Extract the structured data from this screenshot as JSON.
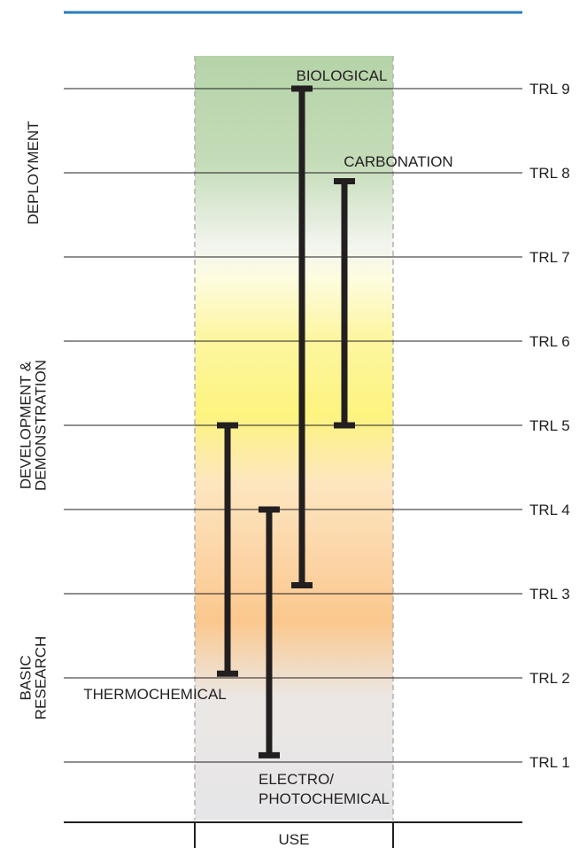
{
  "chart_data": {
    "type": "range",
    "y_axis": {
      "levels": [
        "TRL 1",
        "TRL 2",
        "TRL 3",
        "TRL 4",
        "TRL 5",
        "TRL 6",
        "TRL 7",
        "TRL 8",
        "TRL 9"
      ],
      "range": [
        1,
        9
      ]
    },
    "phases": [
      {
        "label": "DEPLOYMENT",
        "from": 7,
        "to": 9
      },
      {
        "label_lines": [
          "DEVELOPMENT &",
          "DEMONSTRATION"
        ],
        "from": 4,
        "to": 6
      },
      {
        "label_lines": [
          "BASIC",
          "RESEARCH"
        ],
        "from": 1,
        "to": 3
      }
    ],
    "column_label": "USE",
    "series": [
      {
        "label_lines": [
          "BIOLOGICAL"
        ],
        "low": 3.1,
        "high": 9.0
      },
      {
        "label_lines": [
          "CARBONATION"
        ],
        "low": 5.0,
        "high": 7.9
      },
      {
        "label_lines": [
          "THERMOCHEMICAL"
        ],
        "low": 2.05,
        "high": 5.0
      },
      {
        "label_lines": [
          "ELECTRO/",
          "PHOTOCHEMICAL"
        ],
        "low": 1.08,
        "high": 4.0
      }
    ],
    "colors": {
      "deployment": "#b5d3a8",
      "development": "#fdf480",
      "basic_research": "#fbc88e",
      "neutral": "#e6e6e8",
      "bars": "#231f20",
      "header_line": "#2b7bbf"
    }
  }
}
